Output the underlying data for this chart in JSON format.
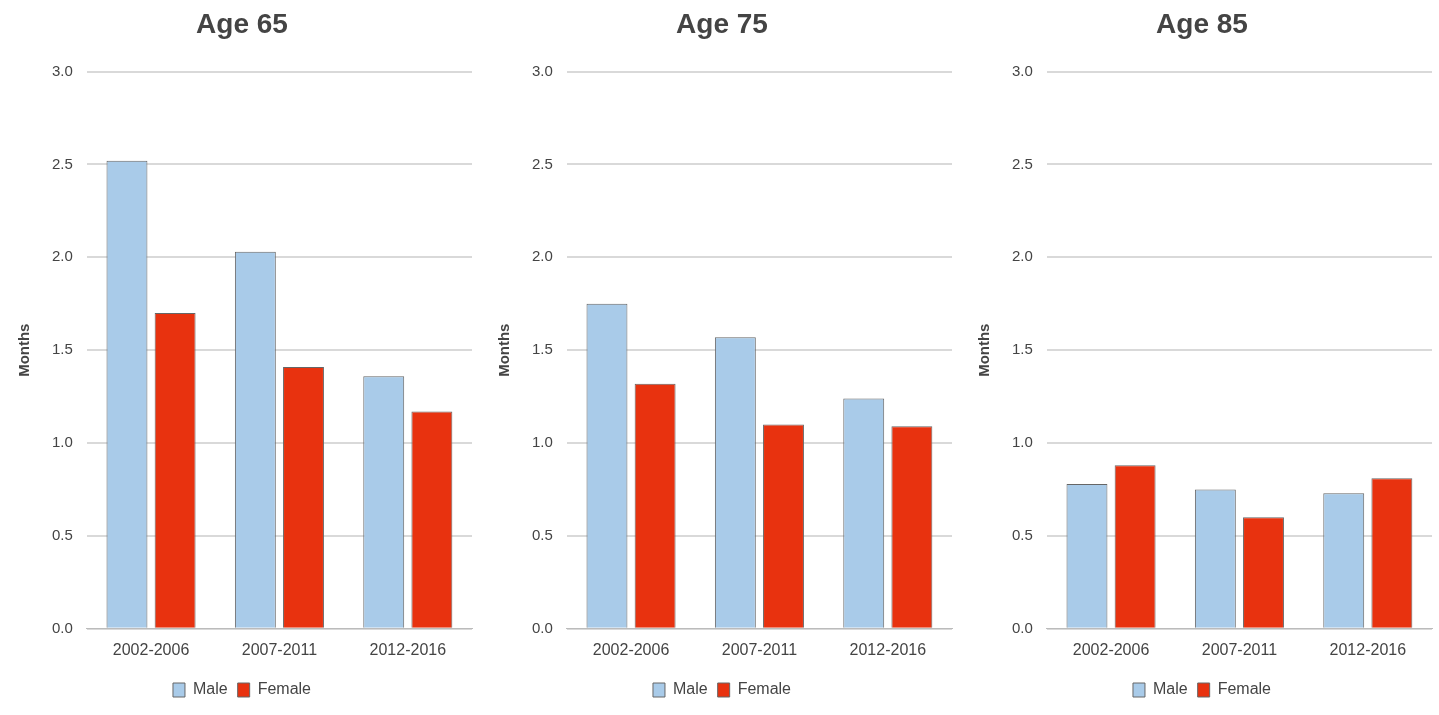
{
  "chart_data": [
    {
      "type": "bar",
      "title": "Age 65",
      "ylabel": "Months",
      "categories": [
        "2002-2006",
        "2007-2011",
        "2012-2016"
      ],
      "series": [
        {
          "name": "Male",
          "color": "#a9cbe9",
          "values": [
            2.52,
            2.03,
            1.36
          ]
        },
        {
          "name": "Female",
          "color": "#e8320f",
          "values": [
            1.7,
            1.41,
            1.17
          ]
        }
      ],
      "ylim": [
        0,
        3
      ],
      "yticks": [
        {
          "value": 0,
          "label": "0.0"
        },
        {
          "value": 0.5,
          "label": "0.5"
        },
        {
          "value": 1,
          "label": "1.0"
        },
        {
          "value": 1.5,
          "label": "1.5"
        },
        {
          "value": 2,
          "label": "2.0"
        },
        {
          "value": 2.5,
          "label": "2.5"
        },
        {
          "value": 3,
          "label": "3.0"
        }
      ],
      "grid": "y",
      "legend": "bottom"
    },
    {
      "type": "bar",
      "title": "Age 75",
      "ylabel": "Months",
      "categories": [
        "2002-2006",
        "2007-2011",
        "2012-2016"
      ],
      "series": [
        {
          "name": "Male",
          "color": "#a9cbe9",
          "values": [
            1.75,
            1.57,
            1.24
          ]
        },
        {
          "name": "Female",
          "color": "#e8320f",
          "values": [
            1.32,
            1.1,
            1.09
          ]
        }
      ],
      "ylim": [
        0,
        3
      ],
      "yticks": [
        {
          "value": 0,
          "label": "0.0"
        },
        {
          "value": 0.5,
          "label": "0.5"
        },
        {
          "value": 1,
          "label": "1.0"
        },
        {
          "value": 1.5,
          "label": "1.5"
        },
        {
          "value": 2,
          "label": "2.0"
        },
        {
          "value": 2.5,
          "label": "2.5"
        },
        {
          "value": 3,
          "label": "3.0"
        }
      ],
      "grid": "y",
      "legend": "bottom"
    },
    {
      "type": "bar",
      "title": "Age 85",
      "ylabel": "Months",
      "categories": [
        "2002-2006",
        "2007-2011",
        "2012-2016"
      ],
      "series": [
        {
          "name": "Male",
          "color": "#a9cbe9",
          "values": [
            0.78,
            0.75,
            0.73
          ]
        },
        {
          "name": "Female",
          "color": "#e8320f",
          "values": [
            0.88,
            0.6,
            0.81
          ]
        }
      ],
      "ylim": [
        0,
        3
      ],
      "yticks": [
        {
          "value": 0,
          "label": "0.0"
        },
        {
          "value": 0.5,
          "label": "0.5"
        },
        {
          "value": 1,
          "label": "1.0"
        },
        {
          "value": 1.5,
          "label": "1.5"
        },
        {
          "value": 2,
          "label": "2.0"
        },
        {
          "value": 2.5,
          "label": "2.5"
        },
        {
          "value": 3,
          "label": "3.0"
        }
      ],
      "grid": "y",
      "legend": "bottom"
    }
  ]
}
